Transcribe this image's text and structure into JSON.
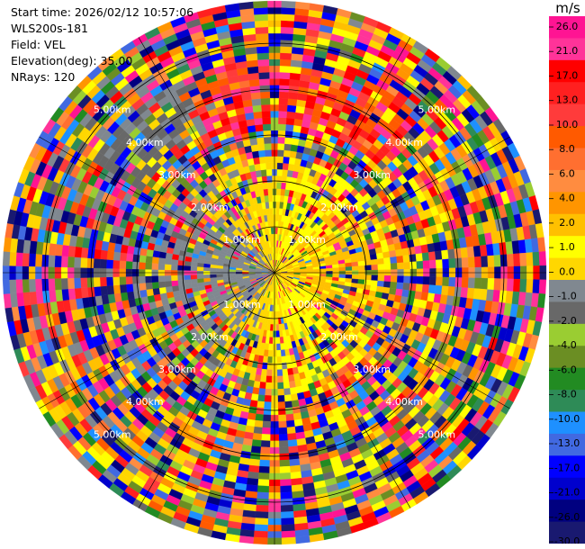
{
  "header": {
    "start_time": "Start time: 2026/02/12 10:57:06",
    "instrument": "WLS200s-181",
    "field": "Field: VEL",
    "elevation": "Elevation(deg): 35.00",
    "nrays": "NRays: 120"
  },
  "colorbar": {
    "unit": "m/s",
    "ticks": [
      "26.0",
      "21.0",
      "17.0",
      "13.0",
      "10.0",
      "8.0",
      "6.0",
      "4.0",
      "2.0",
      "1.0",
      "0.0",
      "-1.0",
      "-2.0",
      "-4.0",
      "-6.0",
      "-8.0",
      "-10.0",
      "-13.0",
      "-17.0",
      "-21.0",
      "-26.0",
      "-30.0"
    ],
    "colors": [
      "#ff1493",
      "#ff3399",
      "#ff0000",
      "#ff2020",
      "#ff3b3b",
      "#ff5a00",
      "#ff6f30",
      "#ff8c40",
      "#ff9500",
      "#ffc000",
      "#ffff00",
      "#ffd700",
      "#808890",
      "#686868",
      "#9acd32",
      "#6b8e23",
      "#228b22",
      "#2e8b57",
      "#1e90ff",
      "#4169e1",
      "#0000ff",
      "#0000cd",
      "#000080",
      "#191970"
    ]
  },
  "chart_data": {
    "type": "heatmap",
    "projection": "polar-ppi",
    "field": "VEL",
    "units": "m/s",
    "nrays": 120,
    "elevation_deg": 35.0,
    "range_rings_km": [
      1.0,
      2.0,
      3.0,
      4.0,
      5.0
    ],
    "ring_labels": [
      "1.00km",
      "2.00km",
      "3.00km",
      "4.00km",
      "5.00km"
    ],
    "value_range": [
      -30.0,
      26.0
    ],
    "notes_visible": "Near-range velocities: yellow/orange (positive ~1-4 m/s) to the east, green (negative ~-2 to -4 m/s) to the west; outer gates noisy; strong positive (red) band to the north-northeast at far range."
  }
}
